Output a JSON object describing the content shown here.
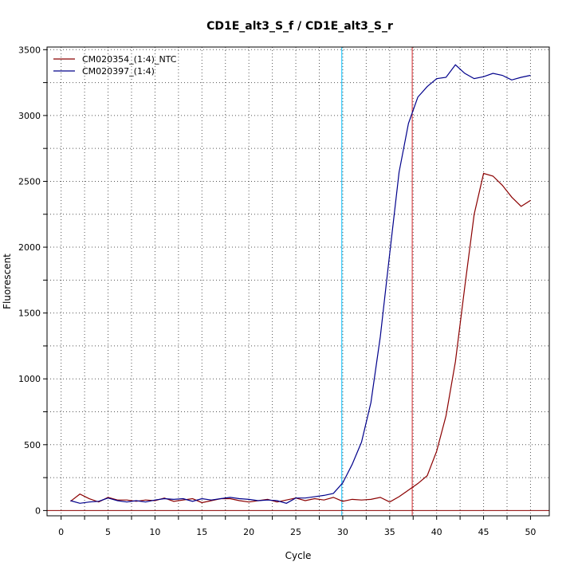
{
  "chart_data": {
    "type": "line",
    "title": "CD1E_alt3_S_f / CD1E_alt3_S_r",
    "xlabel": "Cycle",
    "ylabel": "Fluorescent",
    "xlim": [
      -1.5,
      52
    ],
    "ylim": [
      -40,
      3520
    ],
    "x_ticks": [
      0,
      5,
      10,
      15,
      20,
      25,
      30,
      35,
      40,
      45,
      50
    ],
    "y_ticks": [
      0,
      500,
      1000,
      1500,
      2000,
      2500,
      3000,
      3500
    ],
    "grid": true,
    "grid_style": "dotted",
    "legend_position": "top-left",
    "threshold_y": 0,
    "threshold_color": "#8b0000",
    "vlines": [
      {
        "x": 29.9,
        "color": "#00bfff"
      },
      {
        "x": 37.4,
        "color": "#d62728"
      }
    ],
    "series": [
      {
        "name": "CM020354_(1:4)_NTC",
        "color": "#8b0000",
        "x": [
          1,
          2,
          3,
          4,
          5,
          6,
          7,
          8,
          9,
          10,
          11,
          12,
          13,
          14,
          15,
          16,
          17,
          18,
          19,
          20,
          21,
          22,
          23,
          24,
          25,
          26,
          27,
          28,
          29,
          30,
          31,
          32,
          33,
          34,
          35,
          36,
          37,
          38,
          39,
          40,
          41,
          42,
          43,
          44,
          45,
          46,
          47,
          48,
          49,
          50
        ],
        "values": [
          70,
          125,
          90,
          65,
          100,
          80,
          80,
          70,
          80,
          75,
          95,
          70,
          80,
          90,
          60,
          75,
          90,
          90,
          75,
          65,
          75,
          85,
          65,
          80,
          95,
          75,
          90,
          80,
          100,
          70,
          85,
          80,
          85,
          100,
          65,
          105,
          155,
          205,
          265,
          450,
          720,
          1130,
          1700,
          2250,
          2560,
          2540,
          2470,
          2380,
          2310,
          2355
        ]
      },
      {
        "name": "CM020397_(1:4)",
        "color": "#00008b",
        "x": [
          1,
          2,
          3,
          4,
          5,
          6,
          7,
          8,
          9,
          10,
          11,
          12,
          13,
          14,
          15,
          16,
          17,
          18,
          19,
          20,
          21,
          22,
          23,
          24,
          25,
          26,
          27,
          28,
          29,
          30,
          31,
          32,
          33,
          34,
          35,
          36,
          37,
          38,
          39,
          40,
          41,
          42,
          43,
          44,
          45,
          46,
          47,
          48,
          49,
          50
        ],
        "values": [
          75,
          55,
          65,
          70,
          95,
          75,
          65,
          75,
          65,
          80,
          90,
          85,
          90,
          70,
          90,
          80,
          90,
          100,
          90,
          85,
          75,
          80,
          75,
          55,
          95,
          95,
          105,
          115,
          130,
          210,
          350,
          520,
          820,
          1320,
          1950,
          2570,
          2940,
          3140,
          3220,
          3280,
          3290,
          3385,
          3320,
          3280,
          3295,
          3320,
          3305,
          3270,
          3290,
          3305
        ]
      }
    ]
  }
}
